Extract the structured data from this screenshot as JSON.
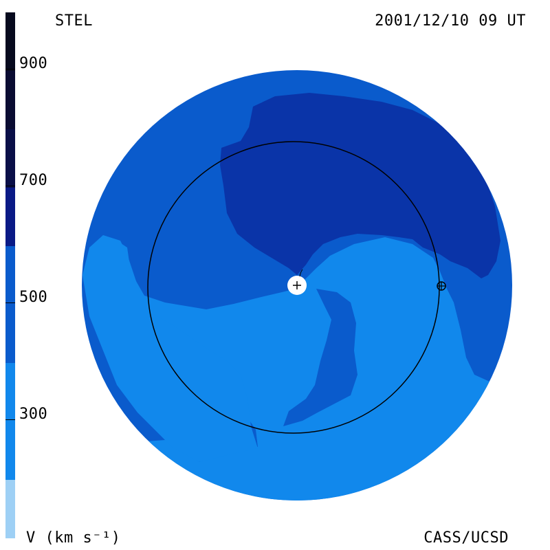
{
  "header": {
    "instrument": "STEL",
    "timestamp": "2001/12/10 09 UT"
  },
  "footer": {
    "unit_label": "V (km s⁻¹)",
    "credit": "CASS/UCSD"
  },
  "colorbar": {
    "ticks": [
      "900",
      "700",
      "500",
      "300"
    ],
    "colors": [
      "#070a1e",
      "#0a0f48",
      "#0a1a86",
      "#0a40b8",
      "#0a5bcc",
      "#1188ec",
      "#3aa8f2",
      "#9ed0f5"
    ]
  },
  "map_colors": {
    "background_wind": "#0a5bcc",
    "slow_wind": "#1188ec",
    "fast_wind": "#0a34a8",
    "sun": "#ffffff",
    "orbit": "#000000"
  }
}
